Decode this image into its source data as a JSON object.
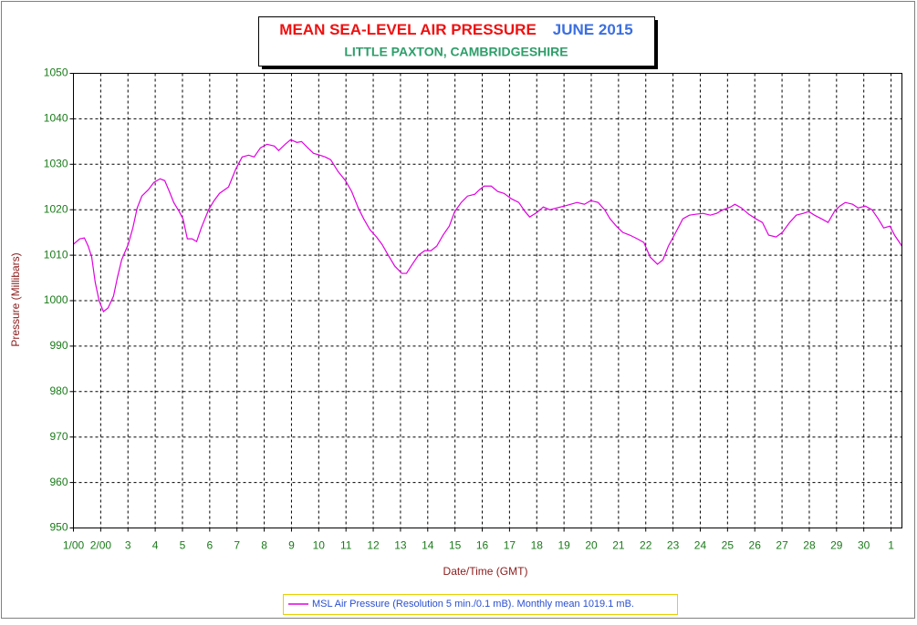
{
  "chart_data": {
    "type": "line",
    "title": "MEAN SEA-LEVEL AIR PRESSURE",
    "title_period": "JUNE 2015",
    "subtitle": "LITTLE PAXTON, CAMBRIDGESHIRE",
    "x_label": "Date/Time (GMT)",
    "y_label": "Pressure (Millibars)",
    "xlim": [
      1,
      31.4
    ],
    "ylim": [
      950,
      1050
    ],
    "xticks": [
      {
        "value": 1,
        "label": "1/00"
      },
      {
        "value": 2,
        "label": "2/00"
      },
      3,
      4,
      5,
      6,
      7,
      8,
      9,
      10,
      11,
      12,
      13,
      14,
      15,
      16,
      17,
      18,
      19,
      20,
      21,
      22,
      23,
      24,
      25,
      26,
      27,
      28,
      29,
      30,
      {
        "value": 31,
        "label": "1"
      }
    ],
    "yticks": [
      950,
      960,
      970,
      980,
      990,
      1000,
      1010,
      1020,
      1030,
      1040,
      1050
    ],
    "grid": true,
    "legend": "bottom",
    "x": [
      1.0,
      1.23,
      1.4,
      1.54,
      1.67,
      1.8,
      1.94,
      2.1,
      2.27,
      2.47,
      2.61,
      2.77,
      3.01,
      3.18,
      3.34,
      3.51,
      3.75,
      3.95,
      4.18,
      4.35,
      4.52,
      4.68,
      4.88,
      5.02,
      5.18,
      5.35,
      5.52,
      5.69,
      5.96,
      6.16,
      6.36,
      6.69,
      6.96,
      7.19,
      7.43,
      7.63,
      7.86,
      8.1,
      8.37,
      8.53,
      8.77,
      8.97,
      9.2,
      9.37,
      9.6,
      9.81,
      10.04,
      10.24,
      10.44,
      10.71,
      10.98,
      11.21,
      11.45,
      11.65,
      11.88,
      12.12,
      12.32,
      12.55,
      12.79,
      13.05,
      13.22,
      13.39,
      13.66,
      13.89,
      14.12,
      14.33,
      14.56,
      14.79,
      14.99,
      15.23,
      15.46,
      15.73,
      15.9,
      16.07,
      16.33,
      16.57,
      16.8,
      17.07,
      17.34,
      17.57,
      17.74,
      18.01,
      18.24,
      18.48,
      18.74,
      19.01,
      19.25,
      19.48,
      19.75,
      19.98,
      20.25,
      20.49,
      20.69,
      20.92,
      21.16,
      21.42,
      21.69,
      21.93,
      22.16,
      22.43,
      22.63,
      22.83,
      23.1,
      23.36,
      23.6,
      23.83,
      24.1,
      24.37,
      24.6,
      24.84,
      25.11,
      25.27,
      25.51,
      25.78,
      26.04,
      26.28,
      26.51,
      26.78,
      27.01,
      27.28,
      27.52,
      27.78,
      27.98,
      28.19,
      28.45,
      28.69,
      28.92,
      29.12,
      29.32,
      29.59,
      29.79,
      30.06,
      30.3,
      30.53,
      30.73,
      30.96,
      31.13,
      31.4
    ],
    "series": [
      {
        "name": "MSL Air Pressure (Resolution 5 min./0.1 mB). Monthly mean 1019.1 mB.",
        "color": "#e000e0",
        "values": [
          1012.4,
          1013.6,
          1013.8,
          1012,
          1009.6,
          1004,
          1000,
          997.6,
          998.4,
          1001,
          1005,
          1009,
          1012.4,
          1016,
          1020.4,
          1023,
          1024.4,
          1026,
          1026.8,
          1026.4,
          1024,
          1021.6,
          1019.6,
          1018,
          1013.6,
          1013.6,
          1013,
          1016,
          1020,
          1022,
          1023.6,
          1025,
          1029,
          1031.6,
          1032,
          1031.6,
          1033.6,
          1034.4,
          1034,
          1033,
          1034.4,
          1035.4,
          1034.8,
          1035,
          1033.6,
          1032.4,
          1032,
          1031.6,
          1031,
          1028.4,
          1026.4,
          1024,
          1020.4,
          1018,
          1015.6,
          1014,
          1012.4,
          1010,
          1007.6,
          1006,
          1006,
          1007.6,
          1010,
          1011,
          1011,
          1012,
          1014.4,
          1016.4,
          1019.6,
          1021.6,
          1023,
          1023.4,
          1024.4,
          1025.2,
          1025.2,
          1024,
          1023.6,
          1022.4,
          1021.6,
          1019.6,
          1018.4,
          1019.4,
          1020.6,
          1020,
          1020.4,
          1020.8,
          1021.2,
          1021.6,
          1021.2,
          1022,
          1021.6,
          1020,
          1018,
          1016.4,
          1015,
          1014.4,
          1013.6,
          1012.8,
          1009.6,
          1008,
          1009,
          1012,
          1015,
          1018,
          1018.8,
          1019,
          1019.2,
          1018.8,
          1019.2,
          1020,
          1020.6,
          1021.2,
          1020.4,
          1019,
          1018,
          1017.2,
          1014.4,
          1014,
          1015,
          1017.2,
          1018.8,
          1019.2,
          1019.6,
          1018.8,
          1018,
          1017.2,
          1019.6,
          1020.8,
          1021.6,
          1021.2,
          1020.4,
          1020.8,
          1020,
          1018,
          1016,
          1016.4,
          1014.4,
          1012
        ]
      }
    ]
  }
}
